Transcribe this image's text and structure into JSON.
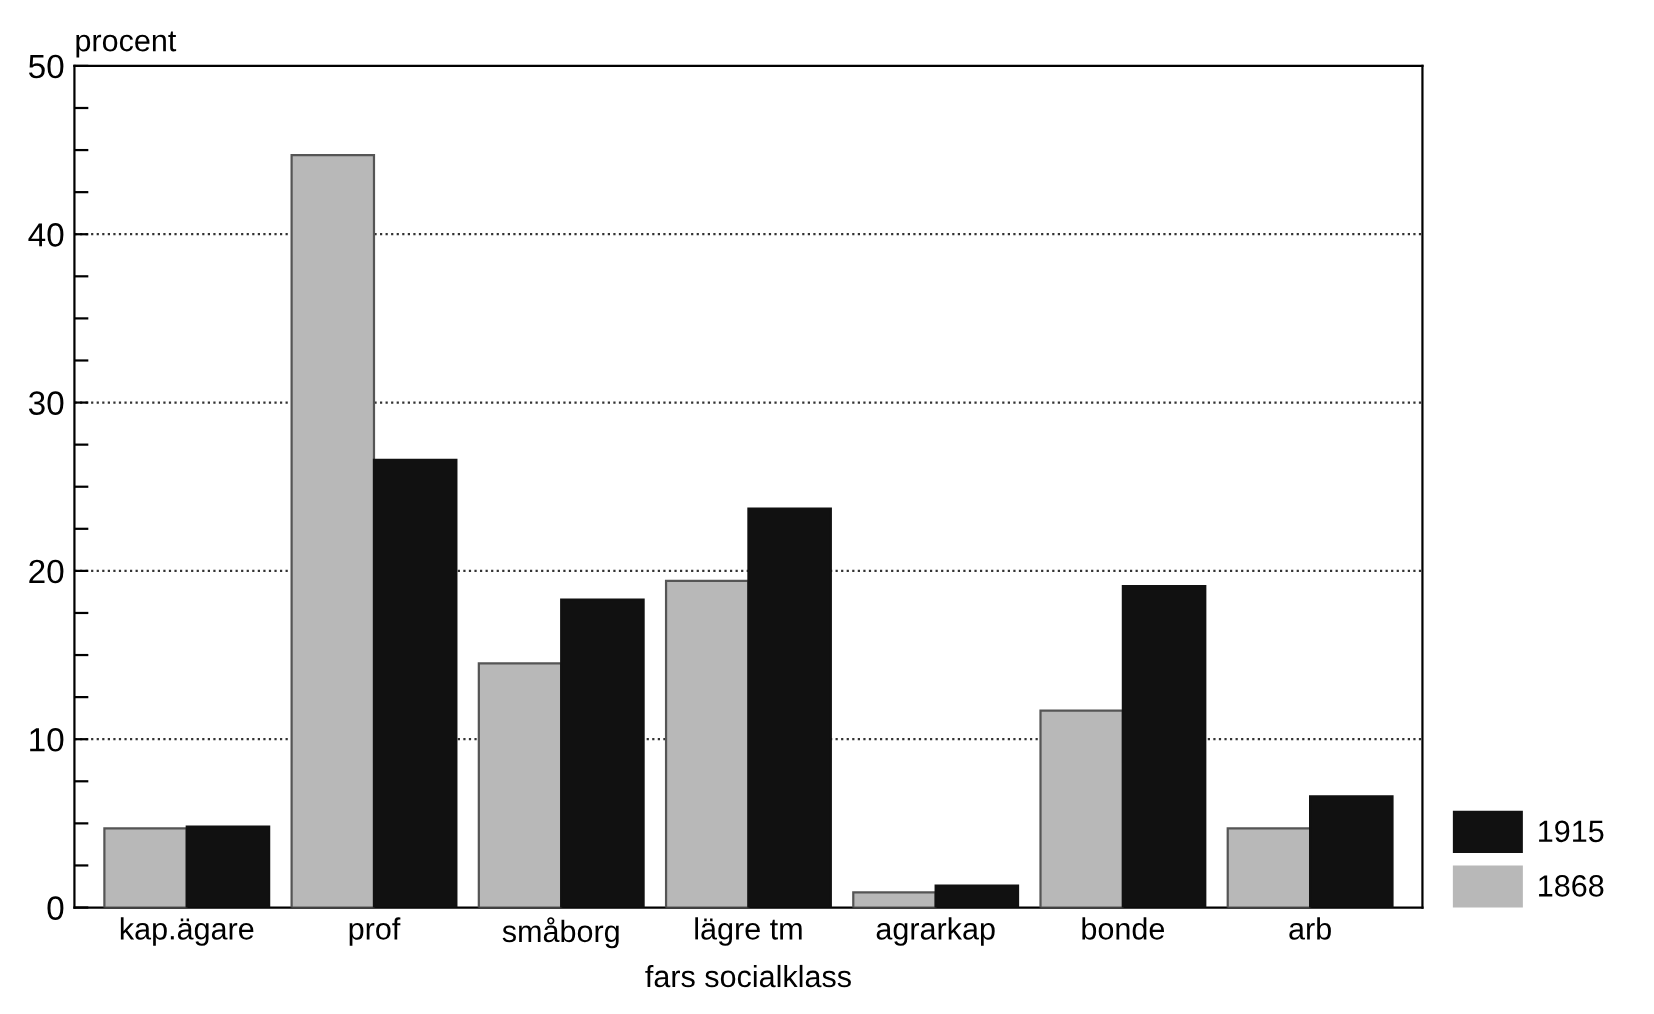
{
  "chart_data": {
    "type": "bar",
    "ylabel": "procent",
    "xlabel": "fars socialklass",
    "categories": [
      "kap.ägare",
      "prof",
      "småborg",
      "lägre tm",
      "agrarkap",
      "bonde",
      "arb"
    ],
    "series": [
      {
        "name": "1868",
        "color": "#b8b8b8",
        "values": [
          4.7,
          44.7,
          14.5,
          19.4,
          0.9,
          11.7,
          4.7
        ]
      },
      {
        "name": "1915",
        "color": "#111111",
        "values": [
          4.8,
          26.6,
          18.3,
          23.7,
          1.3,
          19.1,
          6.6
        ]
      }
    ],
    "ylim": [
      0,
      50
    ],
    "yticks": [
      0,
      {
        "value": 2.5,
        "label": null
      },
      {
        "value": 5,
        "label": null
      },
      {
        "value": 7.5,
        "label": null
      },
      10,
      {
        "value": 12.5,
        "label": null
      },
      {
        "value": 15,
        "label": null
      },
      {
        "value": 17.5,
        "label": null
      },
      20,
      {
        "value": 22.5,
        "label": null
      },
      {
        "value": 25,
        "label": null
      },
      {
        "value": 27.5,
        "label": null
      },
      30,
      {
        "value": 32.5,
        "label": null
      },
      {
        "value": 35,
        "label": null
      },
      {
        "value": 37.5,
        "label": null
      },
      40,
      {
        "value": 42.5,
        "label": null
      },
      {
        "value": 45,
        "label": null
      },
      {
        "value": 47.5,
        "label": null
      },
      50
    ],
    "grid": "y",
    "legend": "bottom right"
  }
}
